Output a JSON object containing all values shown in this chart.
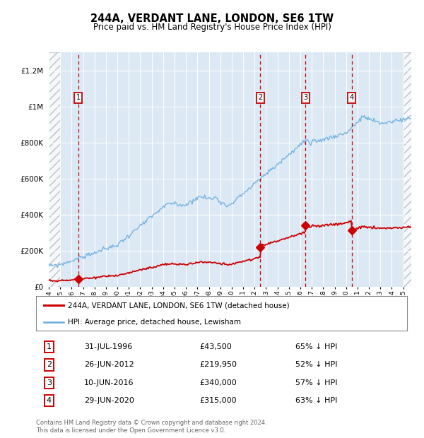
{
  "title": "244A, VERDANT LANE, LONDON, SE6 1TW",
  "subtitle": "Price paid vs. HM Land Registry's House Price Index (HPI)",
  "footer": "Contains HM Land Registry data © Crown copyright and database right 2024.\nThis data is licensed under the Open Government Licence v3.0.",
  "legend_red": "244A, VERDANT LANE, LONDON, SE6 1TW (detached house)",
  "legend_blue": "HPI: Average price, detached house, Lewisham",
  "transactions": [
    {
      "num": 1,
      "date": "31-JUL-1996",
      "year": 1996.58,
      "price": 43500,
      "pct": "65% ↓ HPI"
    },
    {
      "num": 2,
      "date": "26-JUN-2012",
      "year": 2012.49,
      "price": 219950,
      "pct": "52% ↓ HPI"
    },
    {
      "num": 3,
      "date": "10-JUN-2016",
      "year": 2016.44,
      "price": 340000,
      "pct": "57% ↓ HPI"
    },
    {
      "num": 4,
      "date": "29-JUN-2020",
      "year": 2020.49,
      "price": 315000,
      "pct": "63% ↓ HPI"
    }
  ],
  "red_color": "#cc0000",
  "blue_color": "#6aaee0",
  "plot_bg": "#dce9f5",
  "ylim": [
    0,
    1300000
  ],
  "xlim_start": 1994.0,
  "xlim_end": 2025.7,
  "yticks": [
    0,
    200000,
    400000,
    600000,
    800000,
    1000000,
    1200000
  ],
  "ytick_labels": [
    "£0",
    "£200K",
    "£400K",
    "£600K",
    "£800K",
    "£1M",
    "£1.2M"
  ],
  "hpi_seed": 12345,
  "red_seed": 99
}
